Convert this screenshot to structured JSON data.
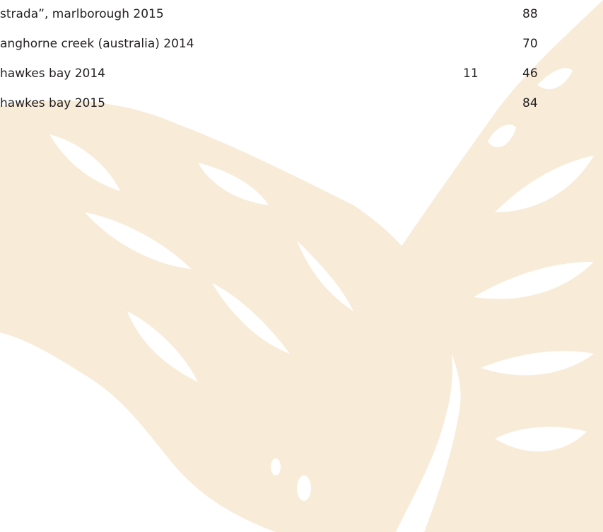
{
  "wine_list": {
    "rows": [
      {
        "name": "strada”, marlborough 2015",
        "bottle": 88
      },
      {
        "name": "anghorne creek (australia) 2014",
        "bottle": 70
      },
      {
        "name": "hawkes bay 2014",
        "glass": 11,
        "bottle": 46
      },
      {
        "name": "hawkes bay 2015",
        "bottle": 84
      }
    ]
  }
}
